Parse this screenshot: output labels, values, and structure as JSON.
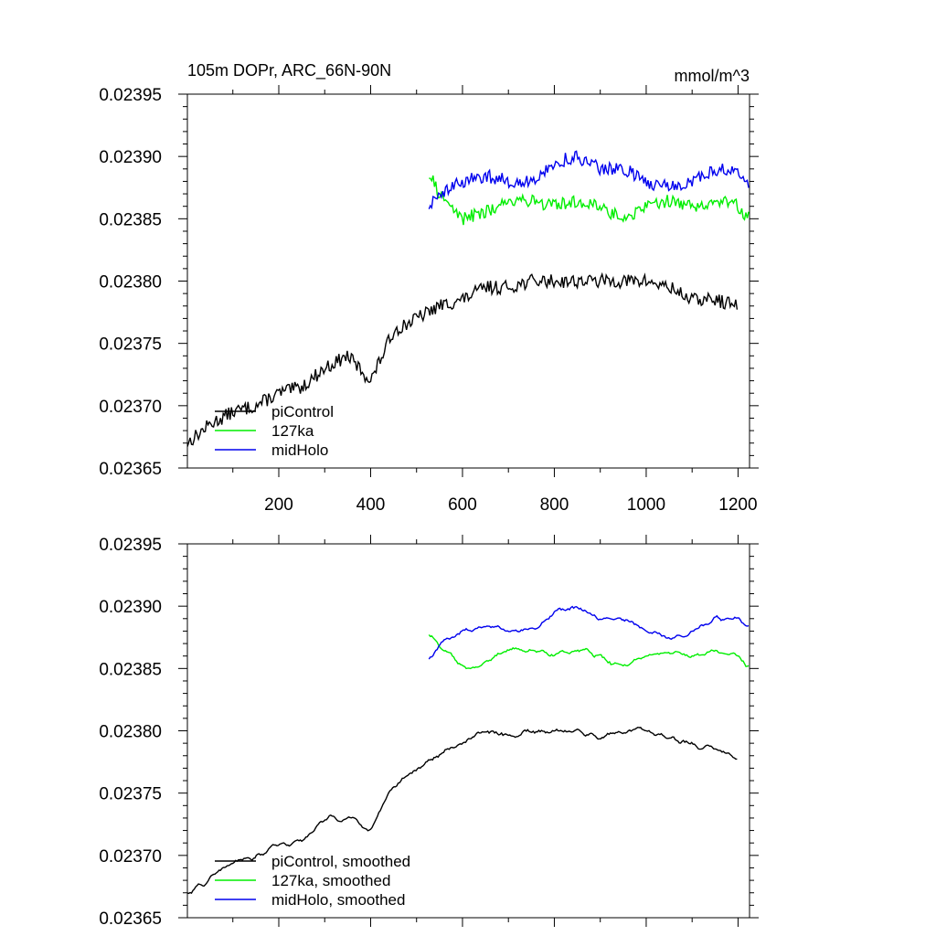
{
  "chart_data": [
    {
      "type": "line",
      "title_left": "105m DOPr, ARC_66N-90N",
      "title_right": "mmol/m^3",
      "xlabel": "",
      "ylabel": "",
      "xlim": [
        1,
        1225
      ],
      "ylim": [
        0.02365,
        0.02395
      ],
      "x_ticks": [
        200,
        400,
        600,
        800,
        1000,
        1200
      ],
      "x_tick_labels": [
        "200",
        "400",
        "600",
        "800",
        "1000",
        "1200"
      ],
      "y_ticks": [
        0.02365,
        0.0237,
        0.02375,
        0.0238,
        0.02385,
        0.0239,
        0.02395
      ],
      "y_tick_labels": [
        "0.02365",
        "0.02370",
        "0.02375",
        "0.02380",
        "0.02385",
        "0.02390",
        "0.02395"
      ],
      "legend": [
        "piControl",
        "127ka",
        "midHolo"
      ],
      "legend_position": "bottom-left",
      "series": [
        {
          "name": "piControl",
          "color": "#000000",
          "x": [
            1,
            50,
            100,
            150,
            200,
            250,
            300,
            350,
            400,
            450,
            500,
            550,
            600,
            650,
            700,
            750,
            800,
            850,
            900,
            950,
            1000,
            1050,
            1100,
            1150,
            1200
          ],
          "values": [
            0.02367,
            0.023685,
            0.023695,
            0.0237,
            0.02371,
            0.023715,
            0.02373,
            0.02374,
            0.02372,
            0.02376,
            0.02377,
            0.02378,
            0.023785,
            0.023795,
            0.023795,
            0.0238,
            0.0238,
            0.0238,
            0.0238,
            0.0238,
            0.0238,
            0.023795,
            0.023785,
            0.023785,
            0.02378
          ]
        },
        {
          "name": "127ka",
          "color": "#00ee00",
          "x": [
            527,
            550,
            600,
            650,
            700,
            750,
            800,
            850,
            900,
            950,
            1000,
            1050,
            1100,
            1150,
            1200,
            1225
          ],
          "values": [
            0.023885,
            0.02387,
            0.02385,
            0.023855,
            0.023865,
            0.023865,
            0.02386,
            0.023865,
            0.02386,
            0.02385,
            0.02386,
            0.023865,
            0.02386,
            0.023865,
            0.02386,
            0.02385
          ]
        },
        {
          "name": "midHolo",
          "color": "#0000ee",
          "x": [
            527,
            550,
            600,
            650,
            700,
            750,
            800,
            850,
            900,
            950,
            1000,
            1050,
            1100,
            1150,
            1200,
            1225
          ],
          "values": [
            0.02386,
            0.02387,
            0.02388,
            0.023885,
            0.02388,
            0.02388,
            0.023895,
            0.0239,
            0.02389,
            0.02389,
            0.02388,
            0.023875,
            0.02388,
            0.02389,
            0.02389,
            0.023875
          ]
        }
      ]
    },
    {
      "type": "line",
      "title_left": "",
      "title_right": "",
      "xlabel": "",
      "ylabel": "",
      "xlim": [
        1,
        1225
      ],
      "ylim": [
        0.02365,
        0.02395
      ],
      "x_ticks": [
        200,
        400,
        600,
        800,
        1000,
        1200
      ],
      "x_tick_labels": [],
      "y_ticks": [
        0.02365,
        0.0237,
        0.02375,
        0.0238,
        0.02385,
        0.0239,
        0.02395
      ],
      "y_tick_labels": [
        "0.02365",
        "0.02370",
        "0.02375",
        "0.02380",
        "0.02385",
        "0.02390",
        "0.02395"
      ],
      "legend": [
        "piControl, smoothed",
        "127ka, smoothed",
        "midHolo, smoothed"
      ],
      "legend_position": "bottom-left",
      "series": [
        {
          "name": "piControl, smoothed",
          "color": "#000000",
          "x": [
            1,
            50,
            100,
            150,
            200,
            250,
            300,
            350,
            400,
            450,
            500,
            550,
            600,
            650,
            700,
            750,
            800,
            850,
            900,
            950,
            1000,
            1050,
            1100,
            1150,
            1200
          ],
          "values": [
            0.02367,
            0.02368,
            0.023695,
            0.0237,
            0.02371,
            0.02371,
            0.02373,
            0.02373,
            0.02372,
            0.023755,
            0.02377,
            0.02378,
            0.02379,
            0.0238,
            0.023795,
            0.0238,
            0.0238,
            0.0238,
            0.023795,
            0.0238,
            0.0238,
            0.023795,
            0.02379,
            0.023785,
            0.02378
          ]
        },
        {
          "name": "127ka, smoothed",
          "color": "#00ee00",
          "x": [
            527,
            550,
            600,
            650,
            700,
            750,
            800,
            850,
            900,
            950,
            1000,
            1050,
            1100,
            1150,
            1200,
            1225
          ],
          "values": [
            0.02388,
            0.02387,
            0.02385,
            0.023855,
            0.023865,
            0.023865,
            0.02386,
            0.023865,
            0.02386,
            0.02385,
            0.02386,
            0.023865,
            0.02386,
            0.023865,
            0.02386,
            0.02385
          ]
        },
        {
          "name": "midHolo, smoothed",
          "color": "#0000ee",
          "x": [
            527,
            550,
            600,
            650,
            700,
            750,
            800,
            850,
            900,
            950,
            1000,
            1050,
            1100,
            1150,
            1200,
            1225
          ],
          "values": [
            0.023855,
            0.02387,
            0.02388,
            0.023885,
            0.02388,
            0.02388,
            0.023895,
            0.0239,
            0.02389,
            0.02389,
            0.02388,
            0.023875,
            0.02388,
            0.02389,
            0.02389,
            0.02388
          ]
        }
      ]
    }
  ]
}
